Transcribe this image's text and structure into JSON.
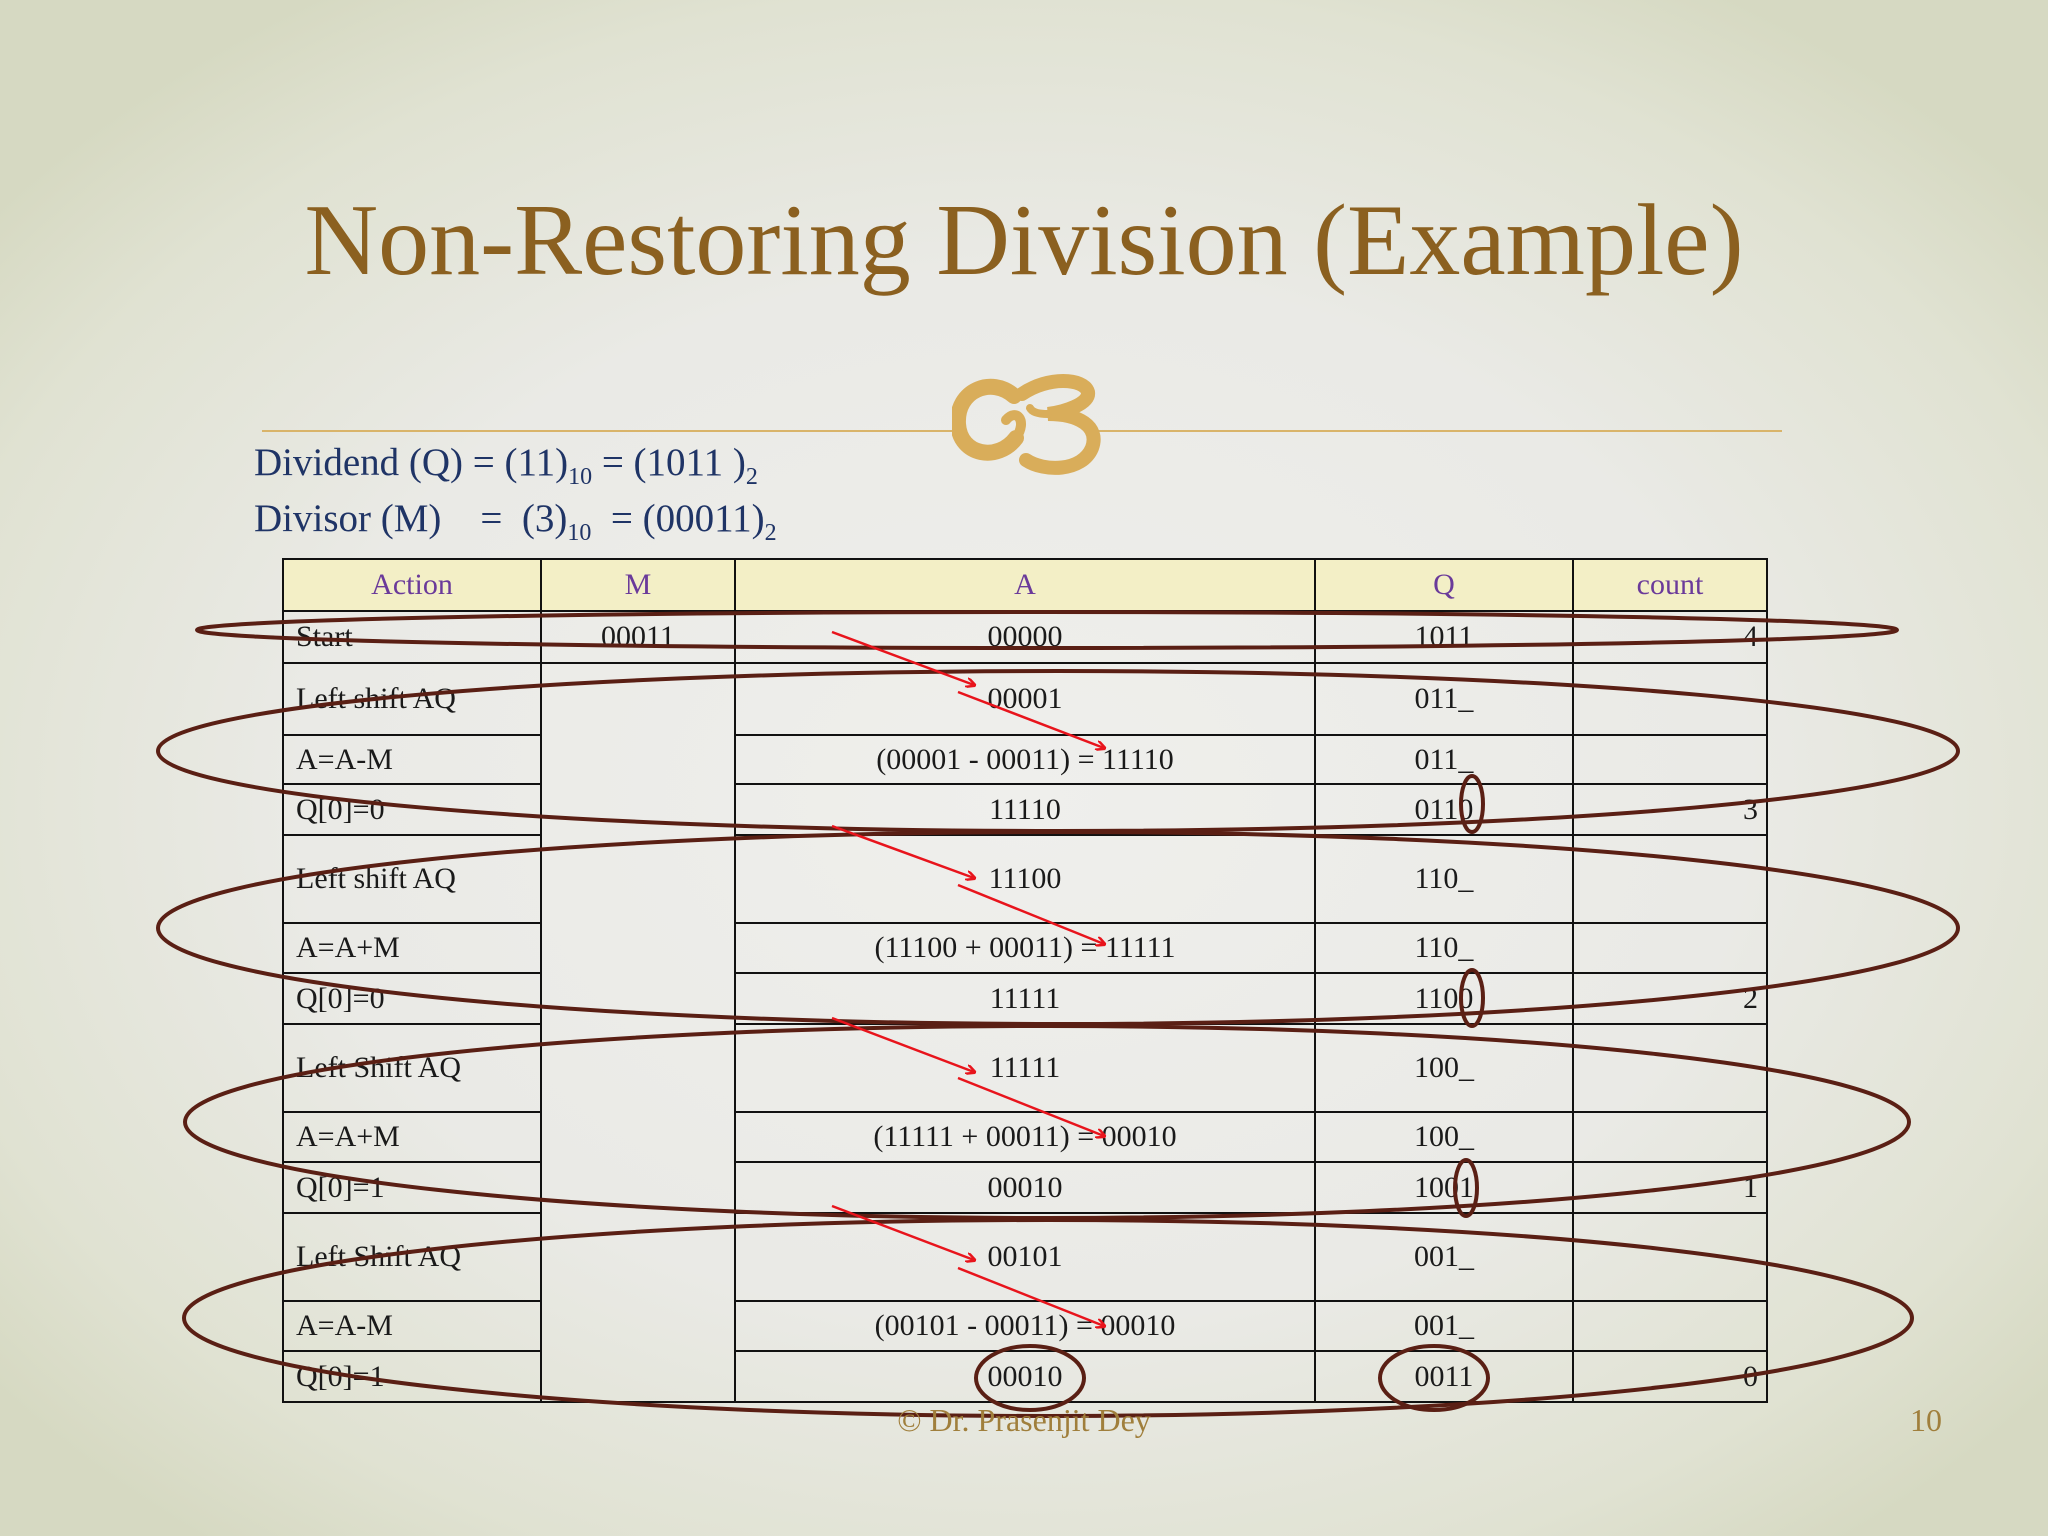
{
  "slide": {
    "title": "Non-Restoring Division (Example)",
    "footer": "© Dr. Prasenjit Dey",
    "page_number": "10",
    "colors": {
      "title": "#8b6020",
      "accent_rule": "#d9b46a",
      "info_text": "#1f3466",
      "header_bg": "#f3efc6",
      "header_text": "#6a3a9a",
      "ellipse": "#5a1f14",
      "arrow": "#e8141c"
    }
  },
  "info": {
    "dividend_label": "Dividend (Q) = (11)",
    "dividend_dec_sub": "10",
    "dividend_bin": " = (1011 )",
    "dividend_bin_sub": "2",
    "divisor_label": "Divisor (M)    =  (3)",
    "divisor_dec_sub": "10",
    "divisor_bin": "  = (00011)",
    "divisor_bin_sub": "2"
  },
  "table": {
    "headers": [
      "Action",
      "M",
      "A",
      "Q",
      "count"
    ],
    "m_value": "00011",
    "rows": [
      {
        "action": "Start",
        "a": "00000",
        "q": "1011",
        "count": "4"
      },
      {
        "action": "Left shift AQ",
        "a": "00001",
        "q": "011_",
        "count": ""
      },
      {
        "action": "A=A-M",
        "a": "(00001 - 00011) = 11110",
        "q": "011_",
        "count": ""
      },
      {
        "action": "Q[0]=0",
        "a": "11110",
        "q": "0110",
        "count": "3"
      },
      {
        "action": "Left shift AQ",
        "a": "11100",
        "q": "110_",
        "count": ""
      },
      {
        "action": "A=A+M",
        "a": "(11100 + 00011) = 11111",
        "q": "110_",
        "count": ""
      },
      {
        "action": "Q[0]=0",
        "a": "11111",
        "q": "1100",
        "count": "2"
      },
      {
        "action": "Left Shift AQ",
        "a": "11111",
        "q": "100_",
        "count": ""
      },
      {
        "action": "A=A+M",
        "a": "(11111 + 00011) = 00010",
        "q": "100_",
        "count": ""
      },
      {
        "action": "Q[0]=1",
        "a": "00010",
        "q": "1001",
        "count": "1"
      },
      {
        "action": "Left Shift AQ",
        "a": "00101",
        "q": "001_",
        "count": ""
      },
      {
        "action": "A=A-M",
        "a": "(00101 - 00011) = 00010",
        "q": "001_",
        "count": ""
      },
      {
        "action": "Q[0]=1",
        "a": "00010",
        "q": "0011",
        "count": "0"
      }
    ]
  },
  "icons": {
    "ornament": "swash-ornament-icon"
  }
}
